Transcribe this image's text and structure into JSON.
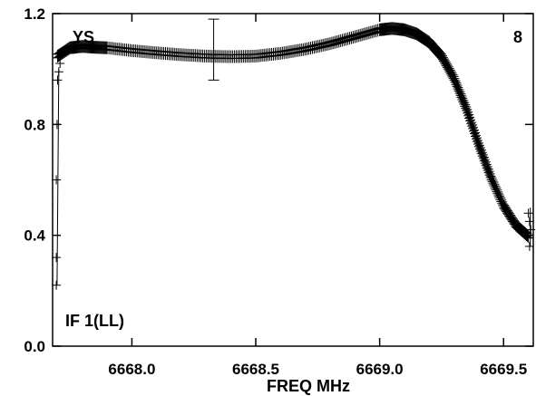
{
  "chart_data": {
    "type": "scatter",
    "xlabel": "FREQ MHz",
    "ylabel": "",
    "xlim": [
      6667.68,
      6669.62
    ],
    "ylim": [
      0.0,
      1.2
    ],
    "x_ticks": [
      6668.0,
      6668.5,
      6669.0,
      6669.5
    ],
    "x_tick_labels": [
      "6668.0",
      "6668.5",
      "6669.0",
      "6669.5"
    ],
    "y_ticks": [
      0.0,
      0.4,
      0.8,
      1.2
    ],
    "y_tick_labels": [
      "0.0",
      "0.4",
      "0.8",
      "1.2"
    ],
    "grid": false,
    "marker": "plus",
    "color": "#000000",
    "annotations": {
      "top_left": "YS",
      "top_right": "8",
      "bottom_left": "IF 1(LL)"
    },
    "curve_points": [
      [
        6667.7,
        1.04
      ],
      [
        6667.75,
        1.07
      ],
      [
        6667.8,
        1.075
      ],
      [
        6667.85,
        1.072
      ],
      [
        6667.9,
        1.07
      ],
      [
        6668.0,
        1.06
      ],
      [
        6668.1,
        1.052
      ],
      [
        6668.2,
        1.045
      ],
      [
        6668.3,
        1.04
      ],
      [
        6668.4,
        1.038
      ],
      [
        6668.5,
        1.04
      ],
      [
        6668.6,
        1.05
      ],
      [
        6668.7,
        1.065
      ],
      [
        6668.8,
        1.085
      ],
      [
        6668.9,
        1.11
      ],
      [
        6669.0,
        1.135
      ],
      [
        6669.05,
        1.14
      ],
      [
        6669.1,
        1.135
      ],
      [
        6669.15,
        1.12
      ],
      [
        6669.2,
        1.09
      ],
      [
        6669.25,
        1.04
      ],
      [
        6669.3,
        0.96
      ],
      [
        6669.35,
        0.85
      ],
      [
        6669.4,
        0.72
      ],
      [
        6669.45,
        0.6
      ],
      [
        6669.5,
        0.5
      ],
      [
        6669.55,
        0.43
      ],
      [
        6669.6,
        0.39
      ]
    ],
    "edge_points": [
      [
        6667.695,
        0.22
      ],
      [
        6667.695,
        0.32
      ],
      [
        6667.695,
        0.6
      ],
      [
        6667.698,
        0.8
      ],
      [
        6667.7,
        0.96
      ],
      [
        6667.705,
        0.99
      ],
      [
        6667.71,
        1.02
      ],
      [
        6669.6,
        0.48
      ],
      [
        6669.605,
        0.45
      ],
      [
        6669.61,
        0.42
      ],
      [
        6669.605,
        0.36
      ]
    ],
    "outlier": {
      "x": 6668.33,
      "y": 1.08,
      "err_low": 0.96,
      "err_high": 1.18
    }
  }
}
